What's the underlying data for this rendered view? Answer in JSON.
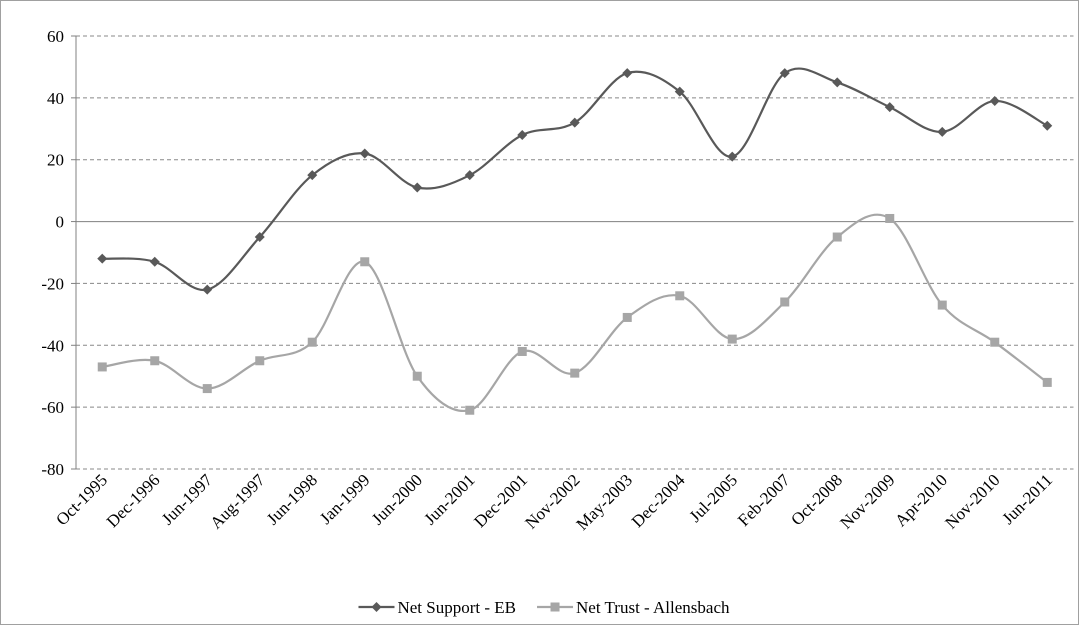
{
  "chart_data": {
    "type": "line",
    "categories": [
      "Oct-1995",
      "Dec-1996",
      "Jun-1997",
      "Aug-1997",
      "Jun-1998",
      "Jan-1999",
      "Jun-2000",
      "Jun-2001",
      "Dec-2001",
      "Nov-2002",
      "May-2003",
      "Dec-2004",
      "Jul-2005",
      "Feb-2007",
      "Oct-2008",
      "Nov-2009",
      "Apr-2010",
      "Nov-2010",
      "Jun-2011"
    ],
    "series": [
      {
        "name": "Net Support - EB",
        "color": "#595959",
        "marker": "diamond",
        "values": [
          -12,
          -13,
          -22,
          -5,
          15,
          22,
          11,
          15,
          28,
          32,
          48,
          42,
          21,
          48,
          45,
          37,
          29,
          39,
          31
        ]
      },
      {
        "name": "Net Trust - Allensbach",
        "color": "#a6a6a6",
        "marker": "square",
        "values": [
          -47,
          -45,
          -54,
          -45,
          -39,
          -13,
          -50,
          -61,
          -42,
          -49,
          -31,
          -24,
          -38,
          -26,
          -5,
          1,
          -27,
          -39,
          -52
        ]
      }
    ],
    "ylim": [
      -80,
      60
    ],
    "yticks": [
      -80,
      -60,
      -40,
      -20,
      0,
      20,
      40,
      60
    ],
    "grid": true,
    "smooth": true,
    "legend": "bottom"
  }
}
